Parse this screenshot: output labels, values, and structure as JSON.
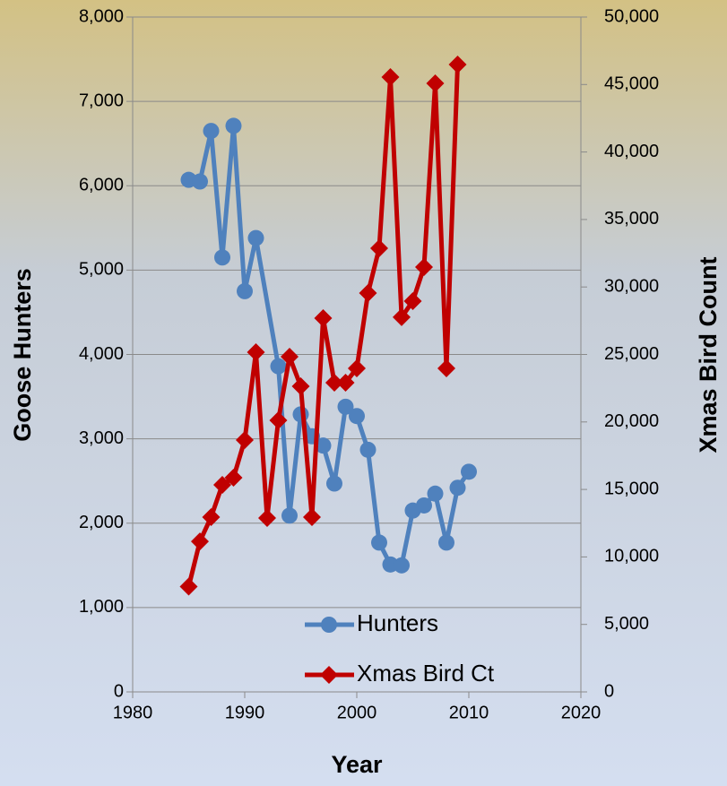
{
  "chart_data": {
    "type": "line",
    "x_label": "Year",
    "y_label": "Goose Hunters",
    "y2_label": "Xmas Bird Count",
    "xlim": [
      1980,
      2020
    ],
    "xticks": [
      1980,
      1990,
      2000,
      2010,
      2020
    ],
    "ylim": [
      0,
      8000
    ],
    "yticks": [
      {
        "value": 0,
        "label": "0"
      },
      {
        "value": 1000,
        "label": "1,000"
      },
      {
        "value": 2000,
        "label": "2,000"
      },
      {
        "value": 3000,
        "label": "3,000"
      },
      {
        "value": 4000,
        "label": "4,000"
      },
      {
        "value": 5000,
        "label": "5,000"
      },
      {
        "value": 6000,
        "label": "6,000"
      },
      {
        "value": 7000,
        "label": "7,000"
      },
      {
        "value": 8000,
        "label": "8,000"
      }
    ],
    "y2lim": [
      0,
      50000
    ],
    "y2ticks": [
      {
        "value": 0,
        "label": "0"
      },
      {
        "value": 5000,
        "label": "5,000"
      },
      {
        "value": 10000,
        "label": "10,000"
      },
      {
        "value": 15000,
        "label": "15,000"
      },
      {
        "value": 20000,
        "label": "20,000"
      },
      {
        "value": 25000,
        "label": "25,000"
      },
      {
        "value": 30000,
        "label": "30,000"
      },
      {
        "value": 35000,
        "label": "35,000"
      },
      {
        "value": 40000,
        "label": "40,000"
      },
      {
        "value": 45000,
        "label": "45,000"
      },
      {
        "value": 50000,
        "label": "50,000"
      }
    ],
    "grid": true,
    "legend": "bottom",
    "series": [
      {
        "name": "Hunters",
        "color": "#4f81bd",
        "marker": "circle",
        "x": [
          1985,
          1986,
          1987,
          1988,
          1989,
          1990,
          1991,
          1993,
          1994,
          1995,
          1996,
          1997,
          1998,
          1999,
          2000,
          2001,
          2002,
          2003,
          2004,
          2005,
          2006,
          2007,
          2008,
          2009,
          2010
        ],
        "values": [
          6070,
          6050,
          6650,
          5150,
          6710,
          4750,
          5380,
          3860,
          2090,
          3290,
          3030,
          2920,
          2470,
          3380,
          3270,
          2870,
          1770,
          1510,
          1500,
          2150,
          2210,
          2350,
          1770,
          2420,
          2610
        ]
      },
      {
        "name": "Xmas Bird Ct",
        "color": "#c00000",
        "marker": "diamond",
        "axis": "y2",
        "x": [
          1985,
          1986,
          1987,
          1988,
          1989,
          1990,
          1991,
          1992,
          1993,
          1994,
          1995,
          1996,
          1997,
          1998,
          1999,
          2000,
          2001,
          2002,
          2003,
          2004,
          2005,
          2006,
          2007,
          2008,
          2009
        ],
        "values": [
          7800,
          11150,
          12950,
          15340,
          15870,
          18660,
          25170,
          12880,
          20120,
          24830,
          22640,
          12950,
          27690,
          22910,
          22910,
          23970,
          29550,
          32870,
          45550,
          27760,
          28950,
          31470,
          45090,
          23970,
          46480
        ]
      }
    ]
  }
}
